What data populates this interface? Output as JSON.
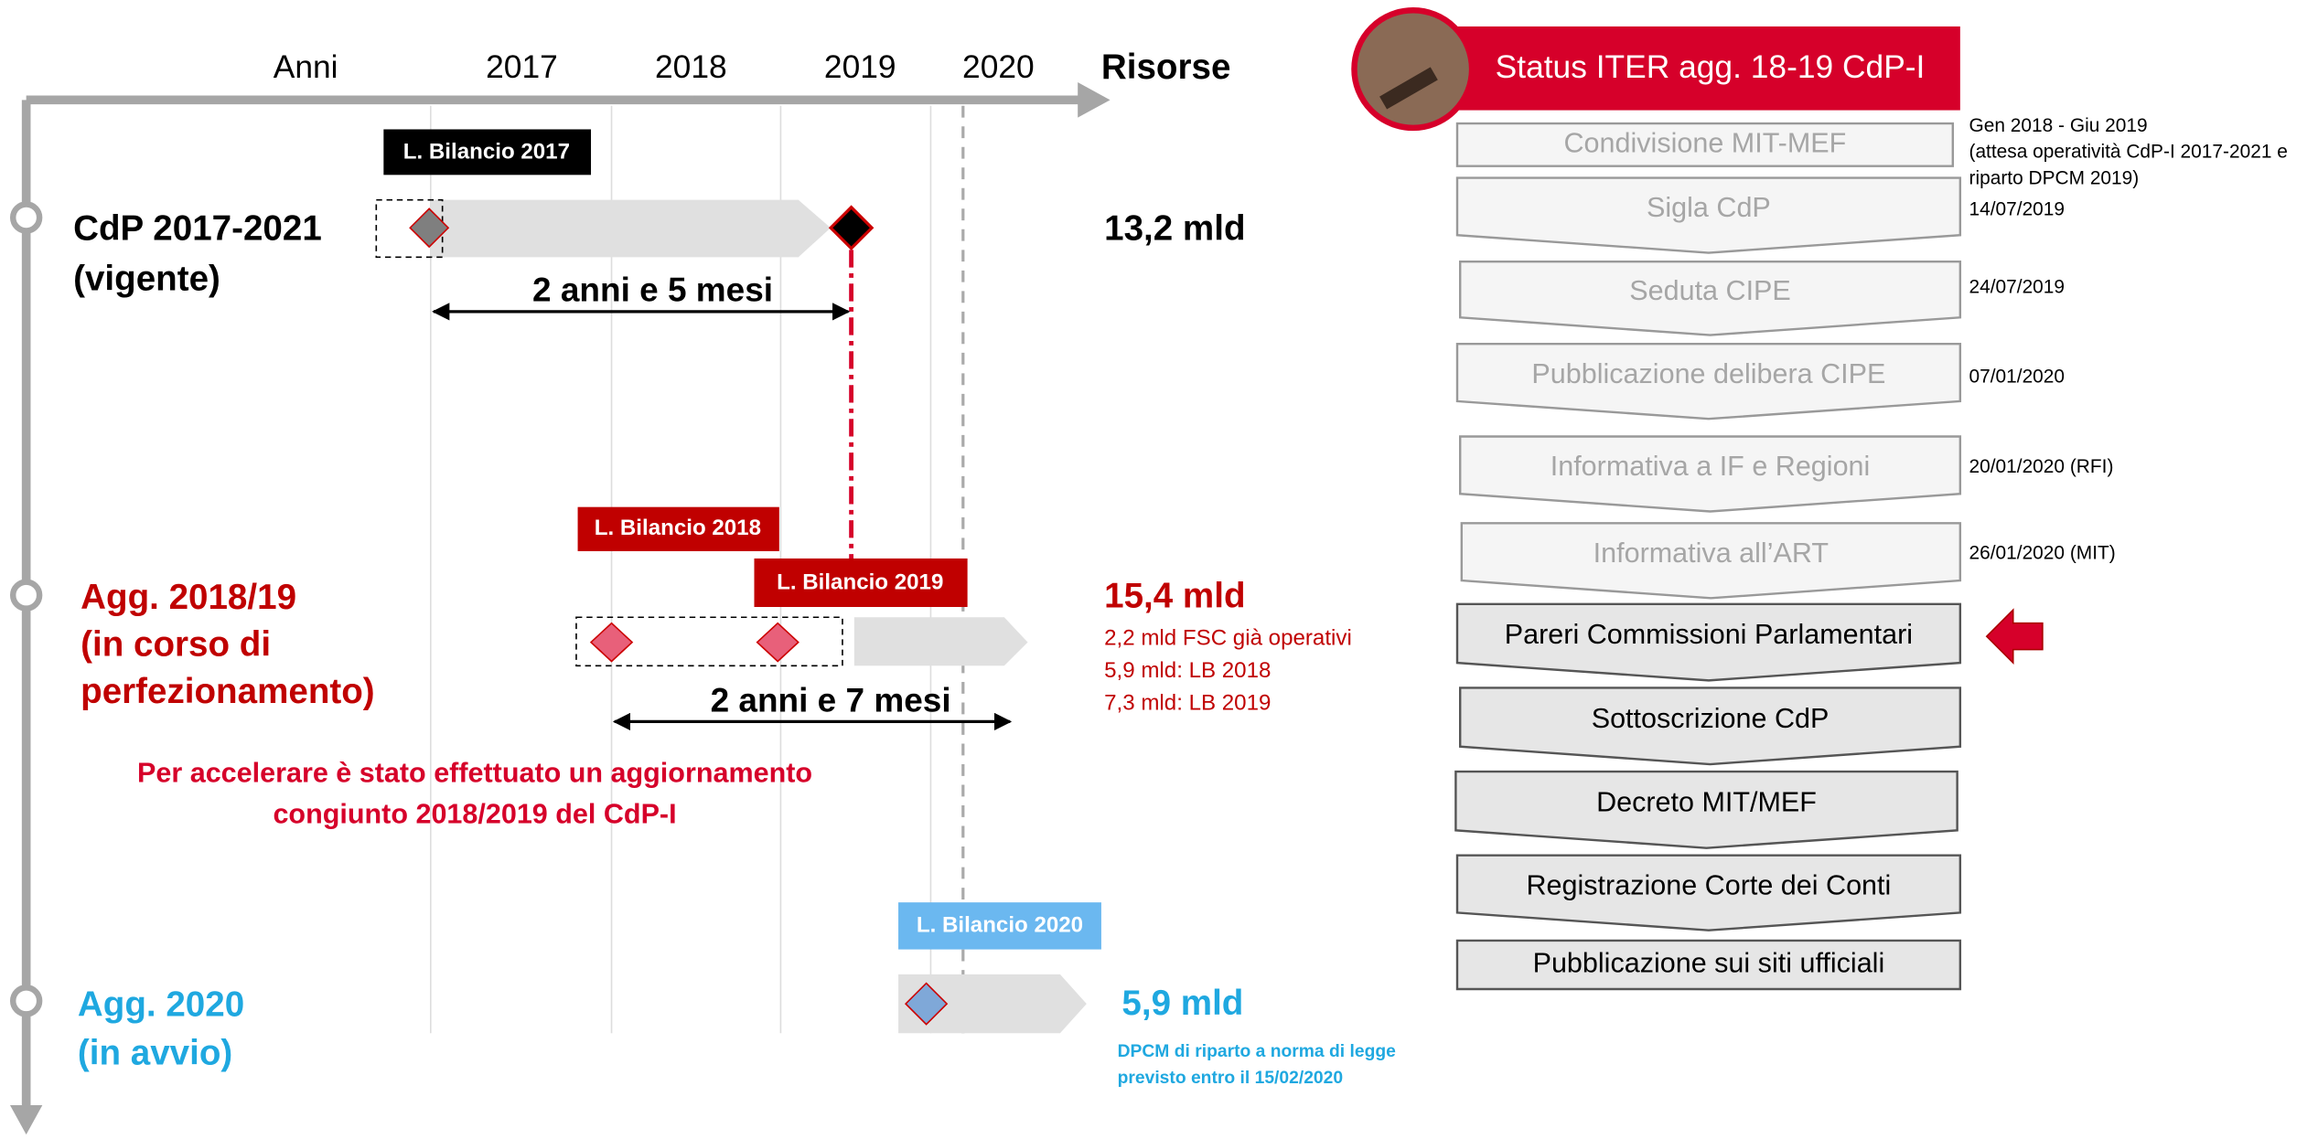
{
  "header": {
    "years": [
      "Anni",
      "2017",
      "2018",
      "2019",
      "2020"
    ],
    "resources": "Risorse"
  },
  "rows": [
    {
      "title": "CdP 2017-2021",
      "subtitle": [
        "(vigente)"
      ],
      "budgets": [
        "L. Bilancio 2017"
      ],
      "duration": "2 anni e 5 mesi",
      "resources": "13,2 mld",
      "notes": []
    },
    {
      "title": "Agg. 2018/19",
      "subtitle": [
        "(in corso di",
        "perfezionamento)"
      ],
      "budgets": [
        "L. Bilancio 2018",
        "L. Bilancio 2019"
      ],
      "duration": "2 anni e 7 mesi",
      "resources": "15,4 mld",
      "notes": [
        "2,2 mld FSC già operativi",
        "5,9 mld: LB 2018",
        "7,3 mld: LB 2019"
      ]
    },
    {
      "title": "Agg. 2020",
      "subtitle": [
        "(in avvio)"
      ],
      "budgets": [
        "L. Bilancio 2020"
      ],
      "duration": null,
      "resources": "5,9 mld",
      "notes": [
        "DPCM di riparto a norma di legge",
        "previsto entro il 15/02/2020"
      ]
    }
  ],
  "note": [
    "Per accelerare è stato effettuato un aggiornamento",
    "congiunto 2018/2019 del CdP-I"
  ],
  "status": {
    "title": "Status ITER agg. 18-19 CdP-I",
    "steps": [
      {
        "label": "Condivisione MIT-MEF",
        "date": [
          "Gen 2018 - Giu 2019",
          "(attesa operatività CdP-I 2017-2021 e",
          "riparto DPCM 2019)"
        ]
      },
      {
        "label": "Sigla CdP",
        "date": [
          "14/07/2019"
        ]
      },
      {
        "label": "Seduta CIPE",
        "date": [
          "24/07/2019"
        ]
      },
      {
        "label": "Pubblicazione delibera CIPE",
        "date": [
          "07/01/2020"
        ]
      },
      {
        "label": "Informativa a IF e Regioni",
        "date": [
          "20/01/2020 (RFI)"
        ]
      },
      {
        "label": "Informativa all’ART",
        "date": [
          "26/01/2020 (MIT)"
        ]
      },
      {
        "label": "Pareri Commissioni Parlamentari",
        "date": []
      },
      {
        "label": "Sottoscrizione CdP",
        "date": []
      },
      {
        "label": "Decreto MIT/MEF",
        "date": []
      },
      {
        "label": "Registrazione Corte dei Conti",
        "date": []
      },
      {
        "label": "Pubblicazione sui siti ufficiali",
        "date": []
      }
    ]
  }
}
